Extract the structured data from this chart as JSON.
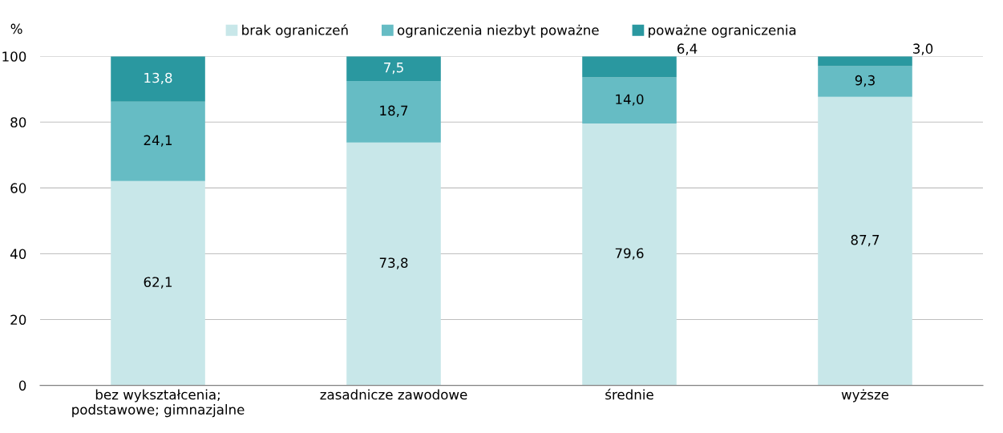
{
  "chart_data": {
    "type": "bar",
    "stacked": true,
    "ylabel": "%",
    "categories": [
      "bez wykształcenia;\npodstawowe; gimnazjalne",
      "zasadnicze zawodowe",
      "średnie",
      "wyższe"
    ],
    "series": [
      {
        "name": "brak ograniczeń",
        "color": "#c8e7e9",
        "values": [
          62.1,
          73.8,
          79.6,
          87.7
        ],
        "value_labels": [
          "62,1",
          "73,8",
          "79,6",
          "87,7"
        ]
      },
      {
        "name": "ograniczenia niezbyt poważne",
        "color": "#66bcc4",
        "values": [
          24.1,
          18.7,
          14.0,
          9.3
        ],
        "value_labels": [
          "24,1",
          "18,7",
          "14,0",
          "9,3"
        ]
      },
      {
        "name": "poważne ograniczenia",
        "color": "#2a98a0",
        "values": [
          13.8,
          7.5,
          6.4,
          3.0
        ],
        "value_labels": [
          "13,8",
          "7,5",
          "6,4",
          "3,0"
        ]
      }
    ],
    "ylim": [
      0,
      100
    ],
    "yticks": [
      0,
      20,
      40,
      60,
      80,
      100
    ],
    "grid": "y",
    "legend": "top"
  }
}
